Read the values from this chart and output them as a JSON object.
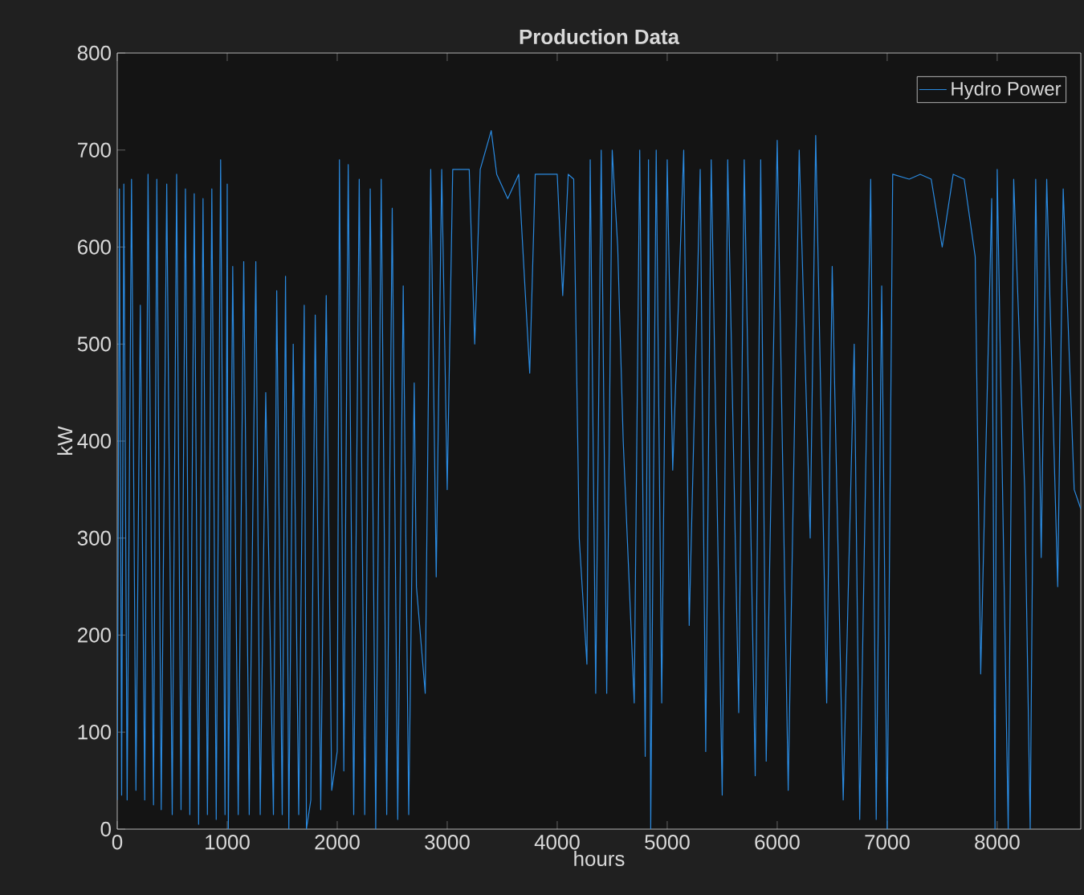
{
  "chart_data": {
    "type": "line",
    "title": "Production Data",
    "xlabel": "hours",
    "ylabel": "kW",
    "xlim": [
      0,
      8760
    ],
    "ylim": [
      0,
      800
    ],
    "xticks": [
      0,
      1000,
      2000,
      3000,
      4000,
      5000,
      6000,
      7000,
      8000
    ],
    "yticks": [
      0,
      100,
      200,
      300,
      400,
      500,
      600,
      700,
      800
    ],
    "legend": "top right",
    "grid": false,
    "marker": "none",
    "line_style": "solid",
    "x": [
      0,
      20,
      40,
      60,
      90,
      130,
      170,
      210,
      250,
      280,
      330,
      360,
      400,
      450,
      500,
      540,
      580,
      620,
      660,
      700,
      740,
      780,
      820,
      860,
      900,
      940,
      980,
      1000,
      1010,
      1050,
      1100,
      1150,
      1200,
      1260,
      1300,
      1350,
      1420,
      1450,
      1500,
      1530,
      1560,
      1600,
      1650,
      1700,
      1720,
      1760,
      1800,
      1850,
      1900,
      1950,
      2000,
      2020,
      2060,
      2100,
      2150,
      2200,
      2250,
      2300,
      2350,
      2400,
      2450,
      2500,
      2550,
      2600,
      2650,
      2700,
      2720,
      2800,
      2850,
      2900,
      2950,
      3000,
      3050,
      3200,
      3250,
      3300,
      3400,
      3450,
      3550,
      3650,
      3750,
      3800,
      4000,
      4050,
      4100,
      4150,
      4200,
      4270,
      4300,
      4350,
      4400,
      4450,
      4500,
      4550,
      4600,
      4700,
      4750,
      4800,
      4830,
      4850,
      4900,
      4950,
      5000,
      5050,
      5150,
      5200,
      5300,
      5350,
      5400,
      5500,
      5550,
      5650,
      5700,
      5800,
      5850,
      5900,
      6000,
      6100,
      6200,
      6300,
      6350,
      6450,
      6500,
      6600,
      6700,
      6750,
      6850,
      6900,
      6950,
      7000,
      7050,
      7200,
      7300,
      7400,
      7500,
      7600,
      7700,
      7800,
      7850,
      7950,
      7980,
      8000,
      8100,
      8150,
      8250,
      8300,
      8350,
      8400,
      8450,
      8550,
      8600,
      8700,
      8760
    ],
    "series": [
      {
        "name": "Hydro Power",
        "color": "#2a8ae0",
        "values": [
          30,
          660,
          35,
          665,
          30,
          670,
          40,
          540,
          30,
          675,
          25,
          670,
          20,
          665,
          15,
          675,
          20,
          660,
          15,
          655,
          5,
          650,
          15,
          660,
          10,
          690,
          15,
          665,
          0,
          580,
          15,
          585,
          15,
          585,
          15,
          450,
          15,
          555,
          15,
          570,
          0,
          500,
          15,
          540,
          0,
          30,
          530,
          20,
          550,
          40,
          80,
          690,
          60,
          685,
          15,
          670,
          15,
          660,
          0,
          670,
          15,
          640,
          10,
          560,
          15,
          460,
          250,
          140,
          680,
          260,
          680,
          350,
          680,
          680,
          500,
          680,
          720,
          675,
          650,
          675,
          470,
          675,
          675,
          550,
          675,
          670,
          300,
          170,
          690,
          140,
          700,
          140,
          700,
          600,
          400,
          130,
          700,
          75,
          690,
          0,
          700,
          130,
          690,
          370,
          700,
          210,
          680,
          80,
          690,
          35,
          690,
          120,
          690,
          55,
          690,
          70,
          710,
          40,
          700,
          300,
          715,
          130,
          580,
          30,
          500,
          10,
          670,
          10,
          560,
          0,
          675,
          670,
          675,
          670,
          600,
          675,
          670,
          590,
          160,
          650,
          0,
          680,
          0,
          670,
          350,
          0,
          670,
          280,
          670,
          250,
          660,
          350,
          330
        ]
      }
    ]
  }
}
